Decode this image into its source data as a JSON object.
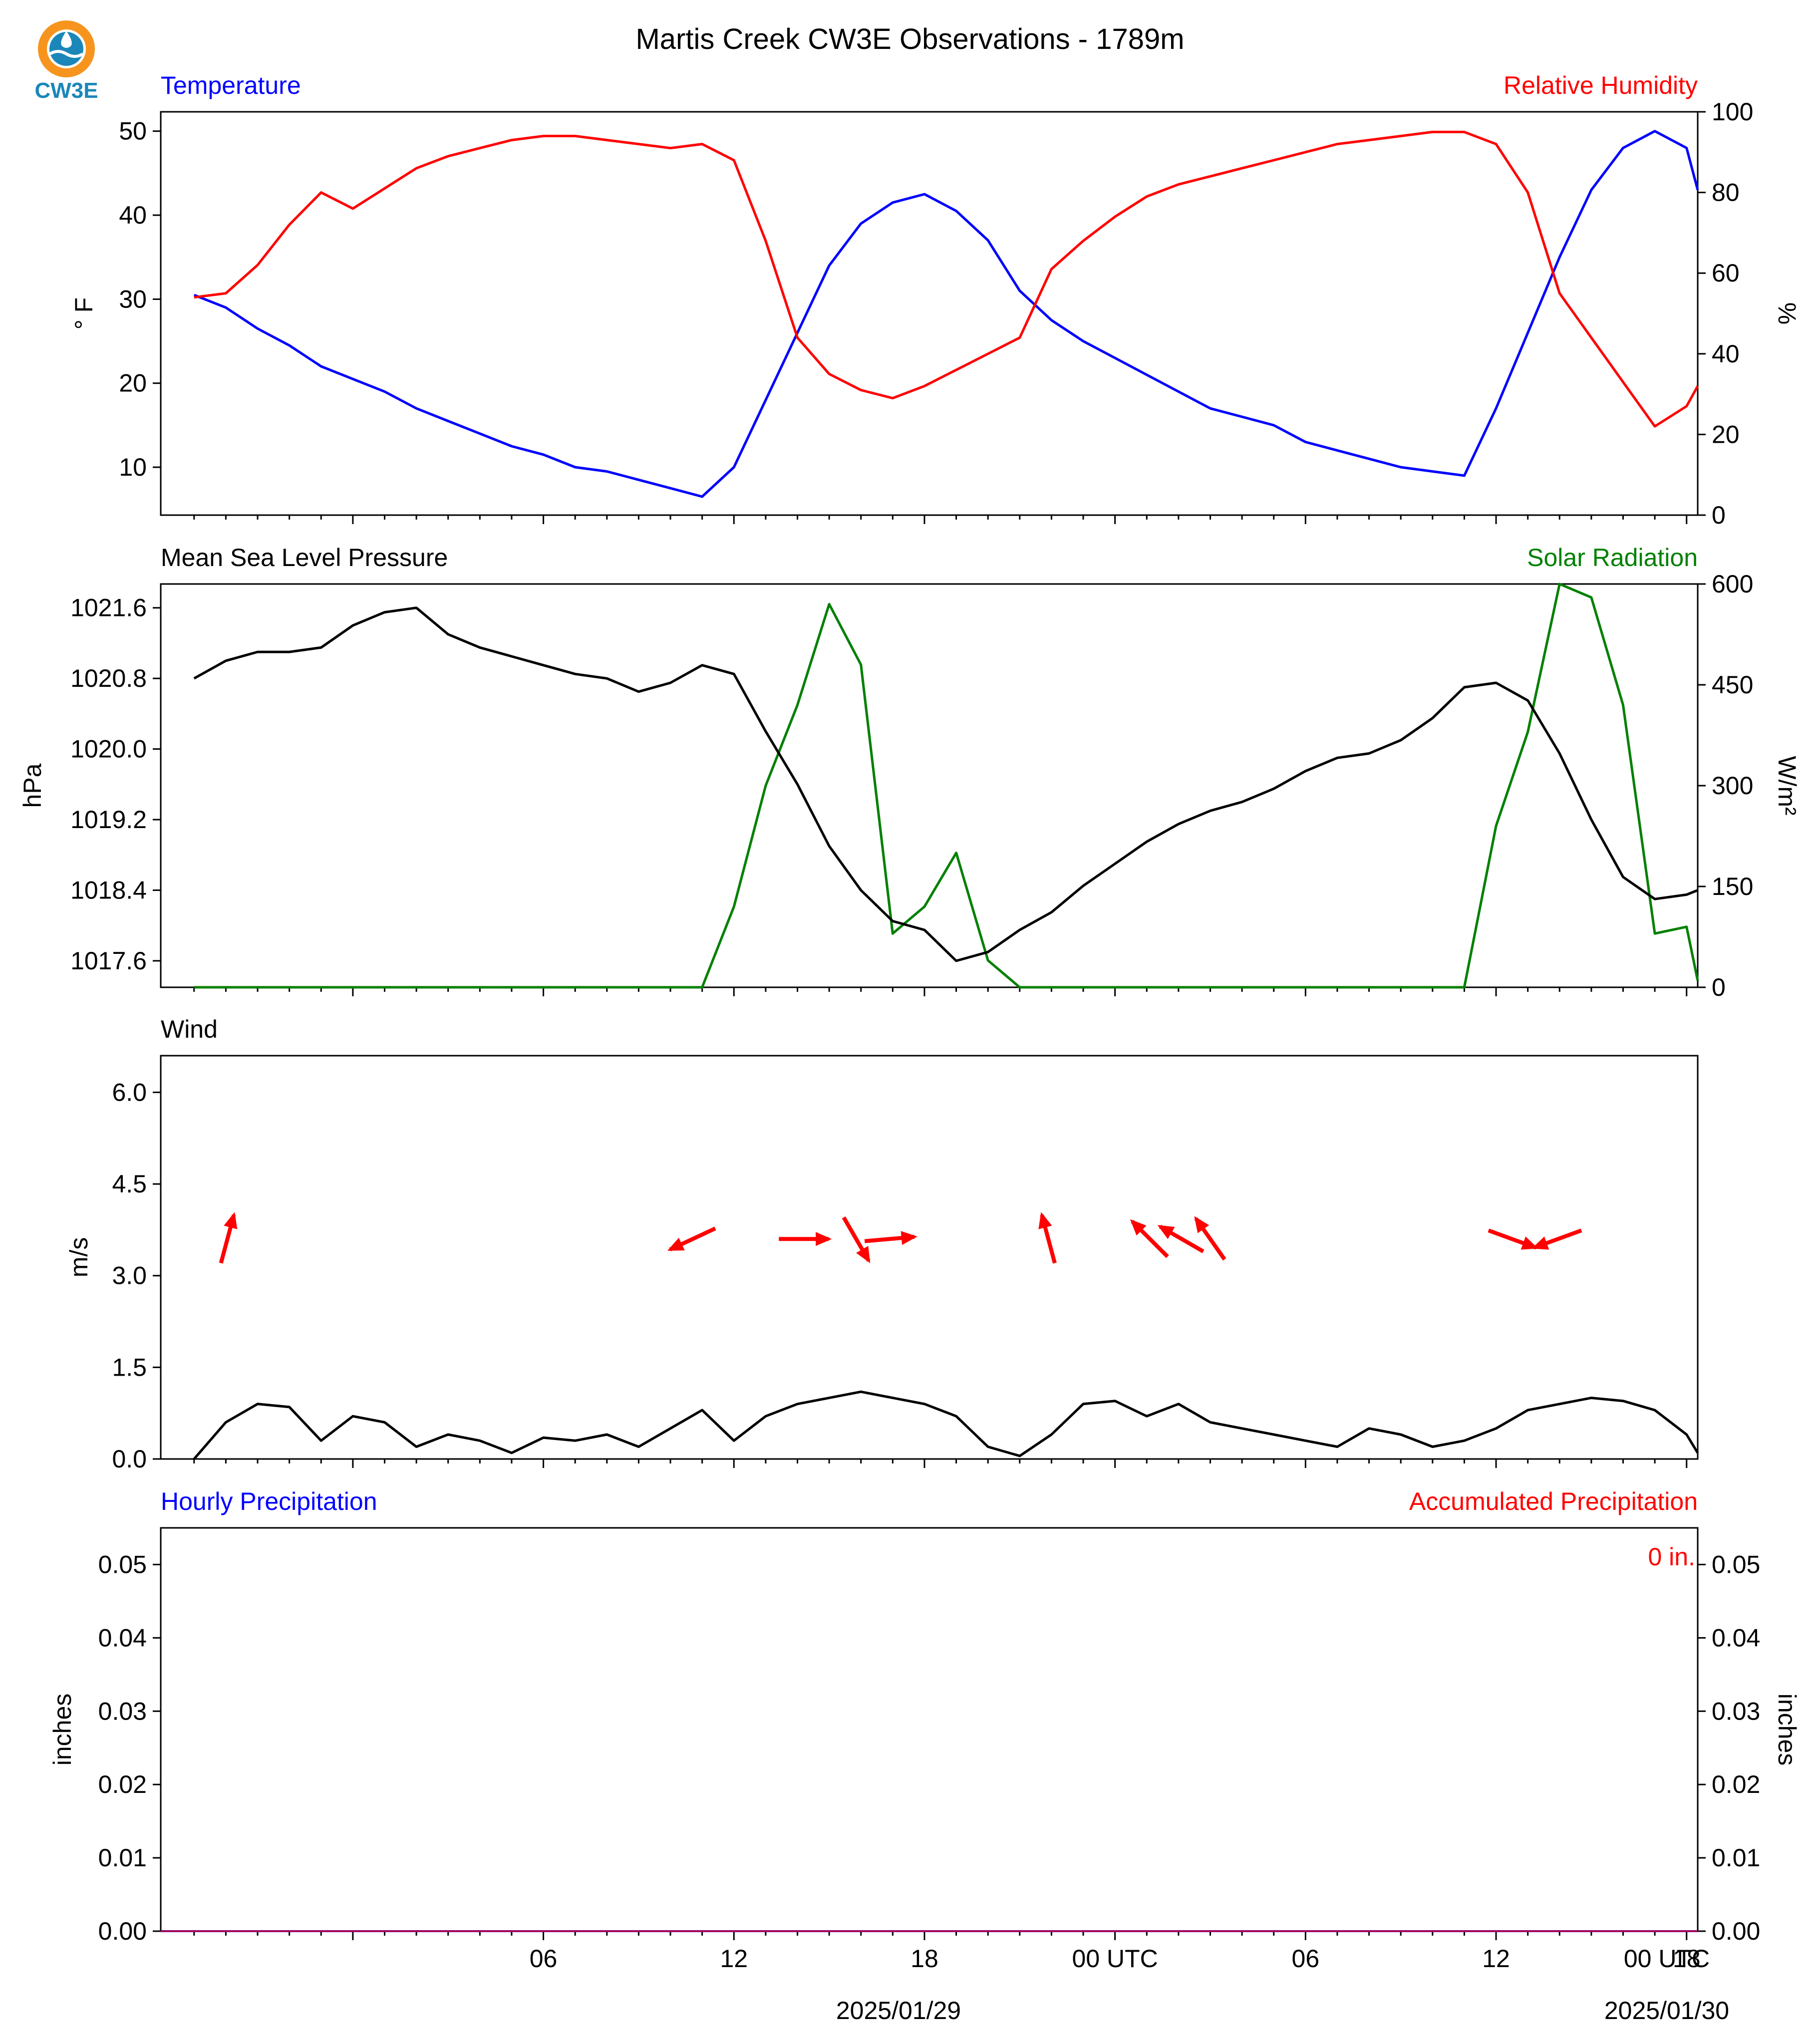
{
  "page": {
    "title": "Martis Creek CW3E Observations - 1789m",
    "logo_text": "CW3E"
  },
  "colors": {
    "temperature": "#0000ff",
    "humidity": "#ff0000",
    "pressure": "#000000",
    "solar": "#008000",
    "wind": "#000000",
    "wind_arrows": "#ff0000",
    "precip_hourly": "#0000ff",
    "precip_accum": "#ff0000",
    "logo_orange": "#f7941d",
    "logo_teal": "#1a87b8"
  },
  "x_axis": {
    "tick_labels": [
      "06",
      "12",
      "18",
      "00 UTC",
      "06",
      "12",
      "18",
      "00 UTC"
    ],
    "date_labels": [
      "2025/01/29",
      "2025/01/30"
    ]
  },
  "chart_data": [
    {
      "type": "line",
      "panel": "temperature_humidity",
      "left_label": "Temperature",
      "right_label": "Relative Humidity",
      "ylabel": "° F",
      "ylabel_right": "%",
      "ylim": [
        4.3,
        52.3
      ],
      "ylim_right": [
        0,
        100
      ],
      "yticks": [
        10,
        20,
        30,
        40,
        50
      ],
      "yticks_right": [
        0,
        20,
        40,
        60,
        80,
        100
      ],
      "x_hours": [
        -5,
        -4,
        -3,
        -2,
        -1,
        0,
        1,
        2,
        3,
        4,
        5,
        6,
        7,
        8,
        9,
        10,
        11,
        12,
        13,
        14,
        15,
        16,
        17,
        18,
        19,
        20,
        21,
        22,
        23,
        24,
        25,
        26,
        27,
        28,
        29,
        30,
        31,
        32,
        33,
        34,
        35,
        36,
        37,
        38,
        39,
        40,
        41,
        42,
        43
      ],
      "series": [
        {
          "name": "Temperature",
          "axis": "left",
          "values": [
            30.5,
            29,
            26.5,
            24.5,
            22,
            20.5,
            19,
            17,
            15.5,
            14,
            12.5,
            11.5,
            10,
            9.5,
            8.5,
            7.5,
            6.5,
            10,
            18,
            26,
            34,
            39,
            41.5,
            42.5,
            40.5,
            37,
            31,
            27.5,
            25,
            23,
            21,
            19,
            17,
            16,
            15,
            13,
            12,
            11,
            10,
            9.5,
            9,
            17,
            26,
            35,
            43,
            48,
            50,
            48,
            43
          ]
        },
        {
          "name": "Relative Humidity",
          "axis": "right",
          "values": [
            54,
            55,
            62,
            72,
            80,
            76,
            81,
            86,
            89,
            91,
            93,
            94,
            94,
            93,
            92,
            91,
            92,
            88,
            68,
            44,
            35,
            31,
            29,
            32,
            36,
            40,
            44,
            61,
            68,
            74,
            79,
            82,
            84,
            86,
            88,
            90,
            92,
            93,
            94,
            95,
            95,
            92,
            80,
            55,
            44,
            33,
            22,
            27,
            32
          ]
        }
      ]
    },
    {
      "type": "line",
      "panel": "pressure_solar",
      "left_label": "Mean Sea Level Pressure",
      "right_label": "Solar Radiation",
      "ylabel": "hPa",
      "ylabel_right": "W/m²",
      "ylim": [
        17.3,
        21.87
      ],
      "ylim_right": [
        0,
        600
      ],
      "yticks": [
        1017.6,
        1018.4,
        1019.2,
        1020.0,
        1020.8,
        1021.6
      ],
      "yticks_right": [
        0,
        150,
        300,
        450,
        600
      ],
      "pressure_offset": 1000,
      "x_hours": [
        -5,
        -4,
        -3,
        -2,
        -1,
        0,
        1,
        2,
        3,
        4,
        5,
        6,
        7,
        8,
        9,
        10,
        11,
        12,
        13,
        14,
        15,
        16,
        17,
        18,
        19,
        20,
        21,
        22,
        23,
        24,
        25,
        26,
        27,
        28,
        29,
        30,
        31,
        32,
        33,
        34,
        35,
        36,
        37,
        38,
        39,
        40,
        41,
        42,
        43
      ],
      "series": [
        {
          "name": "Mean Sea Level Pressure",
          "axis": "left",
          "values": [
            20.8,
            21.0,
            21.1,
            21.1,
            21.15,
            21.4,
            21.55,
            21.6,
            21.3,
            21.15,
            21.05,
            20.95,
            20.85,
            20.8,
            20.65,
            20.75,
            20.95,
            20.85,
            20.2,
            19.6,
            18.9,
            18.4,
            18.05,
            17.95,
            17.6,
            17.7,
            17.95,
            18.15,
            18.45,
            18.7,
            18.95,
            19.15,
            19.3,
            19.4,
            19.55,
            19.75,
            19.9,
            19.95,
            20.1,
            20.35,
            20.7,
            20.75,
            20.55,
            19.95,
            19.2,
            18.55,
            18.3,
            18.35,
            18.4
          ]
        },
        {
          "name": "Solar Radiation",
          "axis": "right",
          "values": [
            0,
            0,
            0,
            0,
            0,
            0,
            0,
            0,
            0,
            0,
            0,
            0,
            0,
            0,
            0,
            0,
            0,
            120,
            300,
            420,
            570,
            480,
            80,
            120,
            200,
            40,
            0,
            0,
            0,
            0,
            0,
            0,
            0,
            0,
            0,
            0,
            0,
            0,
            0,
            0,
            0,
            240,
            380,
            600,
            580,
            420,
            80,
            90,
            10
          ]
        }
      ]
    },
    {
      "type": "line",
      "panel": "wind",
      "left_label": "Wind",
      "ylabel": "m/s",
      "ylim": [
        0,
        6.6
      ],
      "yticks": [
        0.0,
        1.5,
        3.0,
        4.5,
        6.0
      ],
      "x_hours": [
        -5,
        -4,
        -3,
        -2,
        -1,
        0,
        1,
        2,
        3,
        4,
        5,
        6,
        7,
        8,
        9,
        10,
        11,
        12,
        13,
        14,
        15,
        16,
        17,
        18,
        19,
        20,
        21,
        22,
        23,
        24,
        25,
        26,
        27,
        28,
        29,
        30,
        31,
        32,
        33,
        34,
        35,
        36,
        37,
        38,
        39,
        40,
        41,
        42,
        43
      ],
      "series": [
        {
          "name": "Wind",
          "values": [
            0,
            0.6,
            0.9,
            0.85,
            0.3,
            0.7,
            0.6,
            0.2,
            0.4,
            0.3,
            0.1,
            0.35,
            0.3,
            0.4,
            0.2,
            0.5,
            0.8,
            0.3,
            0.7,
            0.9,
            1.0,
            1.1,
            1.0,
            0.9,
            0.7,
            0.2,
            0.05,
            0.4,
            0.9,
            0.95,
            0.7,
            0.9,
            0.6,
            0.5,
            0.4,
            0.3,
            0.2,
            0.5,
            0.4,
            0.2,
            0.3,
            0.5,
            0.8,
            0.9,
            1.0,
            0.95,
            0.8,
            0.4,
            0.1
          ]
        }
      ],
      "arrows": [
        {
          "x_hours": -3.95,
          "speed": 3.6,
          "dir_deg": 195
        },
        {
          "x_hours": 10.7,
          "speed": 3.6,
          "dir_deg": 65
        },
        {
          "x_hours": 14.2,
          "speed": 3.6,
          "dir_deg": 270
        },
        {
          "x_hours": 15.85,
          "speed": 3.6,
          "dir_deg": 330
        },
        {
          "x_hours": 16.9,
          "speed": 3.6,
          "dir_deg": 265
        },
        {
          "x_hours": 21.9,
          "speed": 3.6,
          "dir_deg": 165
        },
        {
          "x_hours": 25.1,
          "speed": 3.6,
          "dir_deg": 135
        },
        {
          "x_hours": 26.1,
          "speed": 3.6,
          "dir_deg": 120
        },
        {
          "x_hours": 27.0,
          "speed": 3.6,
          "dir_deg": 145
        },
        {
          "x_hours": 36.5,
          "speed": 3.6,
          "dir_deg": 290
        },
        {
          "x_hours": 37.95,
          "speed": 3.6,
          "dir_deg": 70
        }
      ]
    },
    {
      "type": "bar",
      "panel": "precipitation",
      "left_label": "Hourly Precipitation",
      "right_label": "Accumulated Precipitation",
      "ylabel": "inches",
      "ylabel_right": "inches",
      "ylim": [
        0,
        0.055
      ],
      "ylim_right": [
        0,
        0.055
      ],
      "yticks": [
        0.0,
        0.01,
        0.02,
        0.03,
        0.04,
        0.05
      ],
      "yticks_right": [
        0.0,
        0.01,
        0.02,
        0.03,
        0.04,
        0.05
      ],
      "accumulated_text": "0 in.",
      "series": [
        {
          "name": "Hourly Precipitation",
          "values": [
            0
          ]
        },
        {
          "name": "Accumulated Precipitation",
          "values": [
            0
          ]
        }
      ]
    }
  ]
}
